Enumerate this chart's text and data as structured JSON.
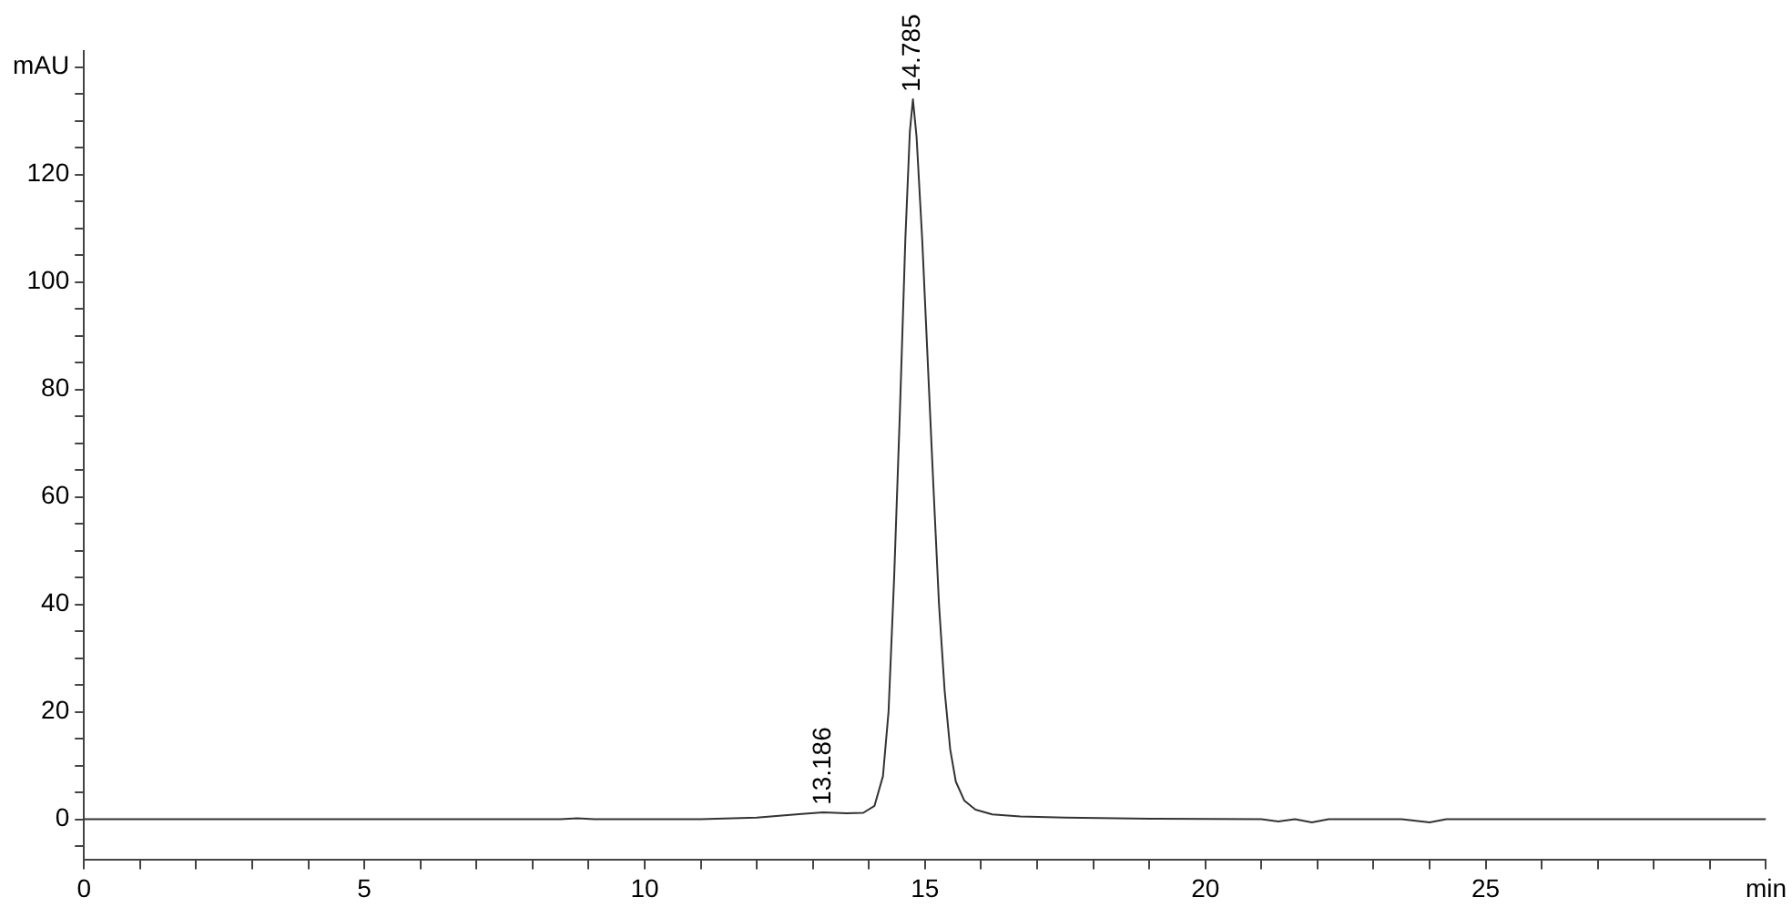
{
  "chart_data": {
    "type": "line",
    "marker": "none",
    "grid": false,
    "legend": false,
    "color": "#333333",
    "x": [
      0,
      8.5,
      8.8,
      9.1,
      11,
      12,
      12.8,
      13.186,
      13.6,
      13.9,
      14.1,
      14.25,
      14.35,
      14.45,
      14.55,
      14.65,
      14.73,
      14.785,
      14.85,
      14.95,
      15.05,
      15.15,
      15.25,
      15.35,
      15.45,
      15.55,
      15.7,
      15.9,
      16.2,
      16.7,
      17.5,
      19,
      21,
      21.3,
      21.6,
      21.9,
      22.2,
      23.5,
      24,
      24.3,
      26,
      30
    ],
    "values": [
      0,
      0,
      0.2,
      0,
      0,
      0.3,
      1.0,
      1.3,
      1.1,
      1.2,
      2.5,
      8,
      20,
      45,
      75,
      108,
      128,
      134,
      127,
      108,
      85,
      62,
      40,
      24,
      13,
      7,
      3.5,
      1.8,
      0.9,
      0.5,
      0.3,
      0.1,
      0,
      -0.4,
      0,
      -0.6,
      0,
      0,
      -0.6,
      0,
      0,
      0
    ],
    "xlim": [
      0,
      30
    ],
    "xticks": [
      0,
      {
        "value": 1,
        "label": null
      },
      {
        "value": 2,
        "label": null
      },
      {
        "value": 3,
        "label": null
      },
      {
        "value": 4,
        "label": null
      },
      5,
      {
        "value": 6,
        "label": null
      },
      {
        "value": 7,
        "label": null
      },
      {
        "value": 8,
        "label": null
      },
      {
        "value": 9,
        "label": null
      },
      10,
      {
        "value": 11,
        "label": null
      },
      {
        "value": 12,
        "label": null
      },
      {
        "value": 13,
        "label": null
      },
      {
        "value": 14,
        "label": null
      },
      15,
      {
        "value": 16,
        "label": null
      },
      {
        "value": 17,
        "label": null
      },
      {
        "value": 18,
        "label": null
      },
      {
        "value": 19,
        "label": null
      },
      20,
      {
        "value": 21,
        "label": null
      },
      {
        "value": 22,
        "label": null
      },
      {
        "value": 23,
        "label": null
      },
      {
        "value": 24,
        "label": null
      },
      25,
      {
        "value": 26,
        "label": null
      },
      {
        "value": 27,
        "label": null
      },
      {
        "value": 28,
        "label": null
      },
      {
        "value": 29,
        "label": null
      },
      {
        "value": 30,
        "label": "min"
      }
    ],
    "ylim": [
      -7.6,
      143
    ],
    "yticks": [
      {
        "value": -5,
        "label": null
      },
      0,
      {
        "value": 5,
        "label": null
      },
      {
        "value": 10,
        "label": null
      },
      {
        "value": 15,
        "label": null
      },
      20,
      {
        "value": 25,
        "label": null
      },
      {
        "value": 30,
        "label": null
      },
      {
        "value": 35,
        "label": null
      },
      40,
      {
        "value": 45,
        "label": null
      },
      {
        "value": 50,
        "label": null
      },
      {
        "value": 55,
        "label": null
      },
      60,
      {
        "value": 65,
        "label": null
      },
      {
        "value": 70,
        "label": null
      },
      {
        "value": 75,
        "label": null
      },
      80,
      {
        "value": 85,
        "label": null
      },
      {
        "value": 90,
        "label": null
      },
      {
        "value": 95,
        "label": null
      },
      100,
      {
        "value": 105,
        "label": null
      },
      {
        "value": 110,
        "label": null
      },
      {
        "value": 115,
        "label": null
      },
      120,
      {
        "value": 125,
        "label": null
      },
      {
        "value": 130,
        "label": null
      },
      {
        "value": 135,
        "label": null
      },
      {
        "value": 140,
        "label": "mAU"
      }
    ],
    "annotations": [
      {
        "text": "13.186",
        "x": 13.186,
        "y": 1.3
      },
      {
        "text": "14.785",
        "x": 14.785,
        "y": 134
      }
    ]
  }
}
